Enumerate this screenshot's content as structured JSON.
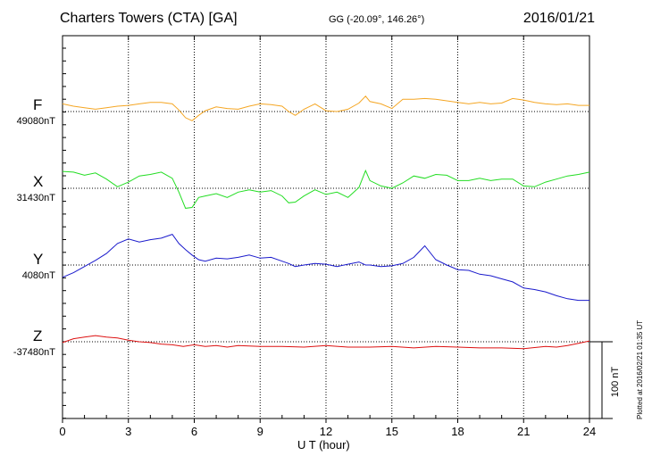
{
  "header": {
    "title": "Charters Towers (CTA)  [GA]",
    "coords": "GG (-20.09°, 146.26°)",
    "date": "2016/01/21"
  },
  "footer": {
    "xlabel": "U T (hour)",
    "plotted": "Plotted at 2016/02/21 01:35 UT"
  },
  "colors": {
    "F": "#f5a623",
    "X": "#22dd22",
    "Y": "#1a1acc",
    "Z": "#dd1111"
  },
  "chart_data": {
    "type": "line",
    "title": "Charters Towers (CTA)  [GA]",
    "xlabel": "U T (hour)",
    "x_ticks": [
      0,
      3,
      6,
      9,
      12,
      15,
      18,
      21,
      24
    ],
    "xlim": [
      0,
      24
    ],
    "scale_bar": {
      "label": "100 nT",
      "value_nT": 100
    },
    "series": [
      {
        "name": "F",
        "baseline_label": "49080nT",
        "baseline": 49080,
        "x": [
          0,
          0.5,
          1,
          1.5,
          2,
          2.5,
          3,
          3.5,
          4,
          4.5,
          5,
          5.3,
          5.6,
          5.9,
          6.2,
          6.5,
          7,
          7.5,
          8,
          8.5,
          9,
          9.5,
          10,
          10.3,
          10.6,
          11,
          11.5,
          12,
          12.5,
          13,
          13.5,
          13.8,
          14,
          14.5,
          15,
          15.5,
          16,
          16.5,
          17,
          17.5,
          18,
          18.5,
          19,
          19.5,
          20,
          20.5,
          21,
          21.5,
          22,
          22.5,
          23,
          23.5,
          24
        ],
        "values": [
          49090,
          49087,
          49085,
          49083,
          49085,
          49087,
          49088,
          49090,
          49092,
          49092,
          49090,
          49082,
          49072,
          49068,
          49075,
          49081,
          49086,
          49084,
          49083,
          49087,
          49090,
          49089,
          49087,
          49080,
          49075,
          49083,
          49090,
          49081,
          49080,
          49083,
          49091,
          49100,
          49093,
          49090,
          49084,
          49096,
          49096,
          49097,
          49096,
          49094,
          49092,
          49090,
          49092,
          49090,
          49091,
          49097,
          49095,
          49092,
          49090,
          49089,
          49090,
          49088,
          49088
        ]
      },
      {
        "name": "X",
        "baseline_label": "31430nT",
        "baseline": 31430,
        "x": [
          0,
          0.5,
          1,
          1.5,
          2,
          2.5,
          3,
          3.5,
          4,
          4.5,
          5,
          5.3,
          5.6,
          5.9,
          6.2,
          6.5,
          7,
          7.5,
          8,
          8.5,
          9,
          9.5,
          10,
          10.3,
          10.6,
          11,
          11.5,
          12,
          12.5,
          13,
          13.5,
          13.8,
          14,
          14.5,
          15,
          15.5,
          16,
          16.5,
          17,
          17.5,
          18,
          18.5,
          19,
          19.5,
          20,
          20.5,
          21,
          21.5,
          22,
          22.5,
          23,
          23.5,
          24
        ],
        "values": [
          31452,
          31451,
          31447,
          31450,
          31442,
          31432,
          31438,
          31446,
          31448,
          31451,
          31443,
          31425,
          31404,
          31405,
          31418,
          31420,
          31423,
          31418,
          31425,
          31428,
          31425,
          31427,
          31420,
          31411,
          31412,
          31420,
          31428,
          31422,
          31425,
          31418,
          31431,
          31453,
          31440,
          31433,
          31430,
          31437,
          31446,
          31443,
          31448,
          31447,
          31440,
          31440,
          31443,
          31440,
          31442,
          31442,
          31433,
          31432,
          31438,
          31442,
          31446,
          31448,
          31451
        ]
      },
      {
        "name": "Y",
        "baseline_label": "4080nT",
        "baseline": 4080,
        "x": [
          0,
          0.5,
          1,
          1.5,
          2,
          2.5,
          3,
          3.5,
          4,
          4.5,
          5,
          5.3,
          5.6,
          5.9,
          6.2,
          6.5,
          7,
          7.5,
          8,
          8.5,
          9,
          9.5,
          10,
          10.3,
          10.6,
          11,
          11.5,
          12,
          12.5,
          13,
          13.5,
          13.8,
          14,
          14.5,
          15,
          15.5,
          16,
          16.5,
          17,
          17.5,
          18,
          18.5,
          19,
          19.5,
          20,
          20.5,
          21,
          21.5,
          22,
          22.5,
          23,
          23.5,
          24
        ],
        "values": [
          4064,
          4070,
          4078,
          4086,
          4095,
          4108,
          4114,
          4110,
          4113,
          4115,
          4120,
          4108,
          4100,
          4093,
          4087,
          4085,
          4089,
          4088,
          4090,
          4093,
          4089,
          4090,
          4085,
          4082,
          4078,
          4080,
          4082,
          4081,
          4078,
          4081,
          4084,
          4080,
          4080,
          4078,
          4079,
          4082,
          4090,
          4105,
          4087,
          4080,
          4074,
          4073,
          4068,
          4066,
          4062,
          4058,
          4050,
          4048,
          4045,
          4040,
          4036,
          4034,
          4034
        ]
      },
      {
        "name": "Z",
        "baseline_label": "-37480nT",
        "baseline": -37480,
        "x": [
          0,
          0.5,
          1,
          1.5,
          2,
          2.5,
          3,
          3.5,
          4,
          4.5,
          5,
          5.5,
          6,
          6.5,
          7,
          7.5,
          8,
          9,
          10,
          11,
          12,
          13,
          14,
          15,
          16,
          17,
          18,
          19,
          20,
          21,
          22,
          22.5,
          23,
          23.5,
          24
        ],
        "values": [
          -37481,
          -37476,
          -37474,
          -37472,
          -37474,
          -37475,
          -37478,
          -37480,
          -37481,
          -37483,
          -37484,
          -37486,
          -37484,
          -37486,
          -37485,
          -37487,
          -37485,
          -37486,
          -37486,
          -37487,
          -37485,
          -37487,
          -37487,
          -37486,
          -37488,
          -37486,
          -37487,
          -37488,
          -37488,
          -37489,
          -37486,
          -37487,
          -37485,
          -37482,
          -37479
        ]
      }
    ]
  }
}
